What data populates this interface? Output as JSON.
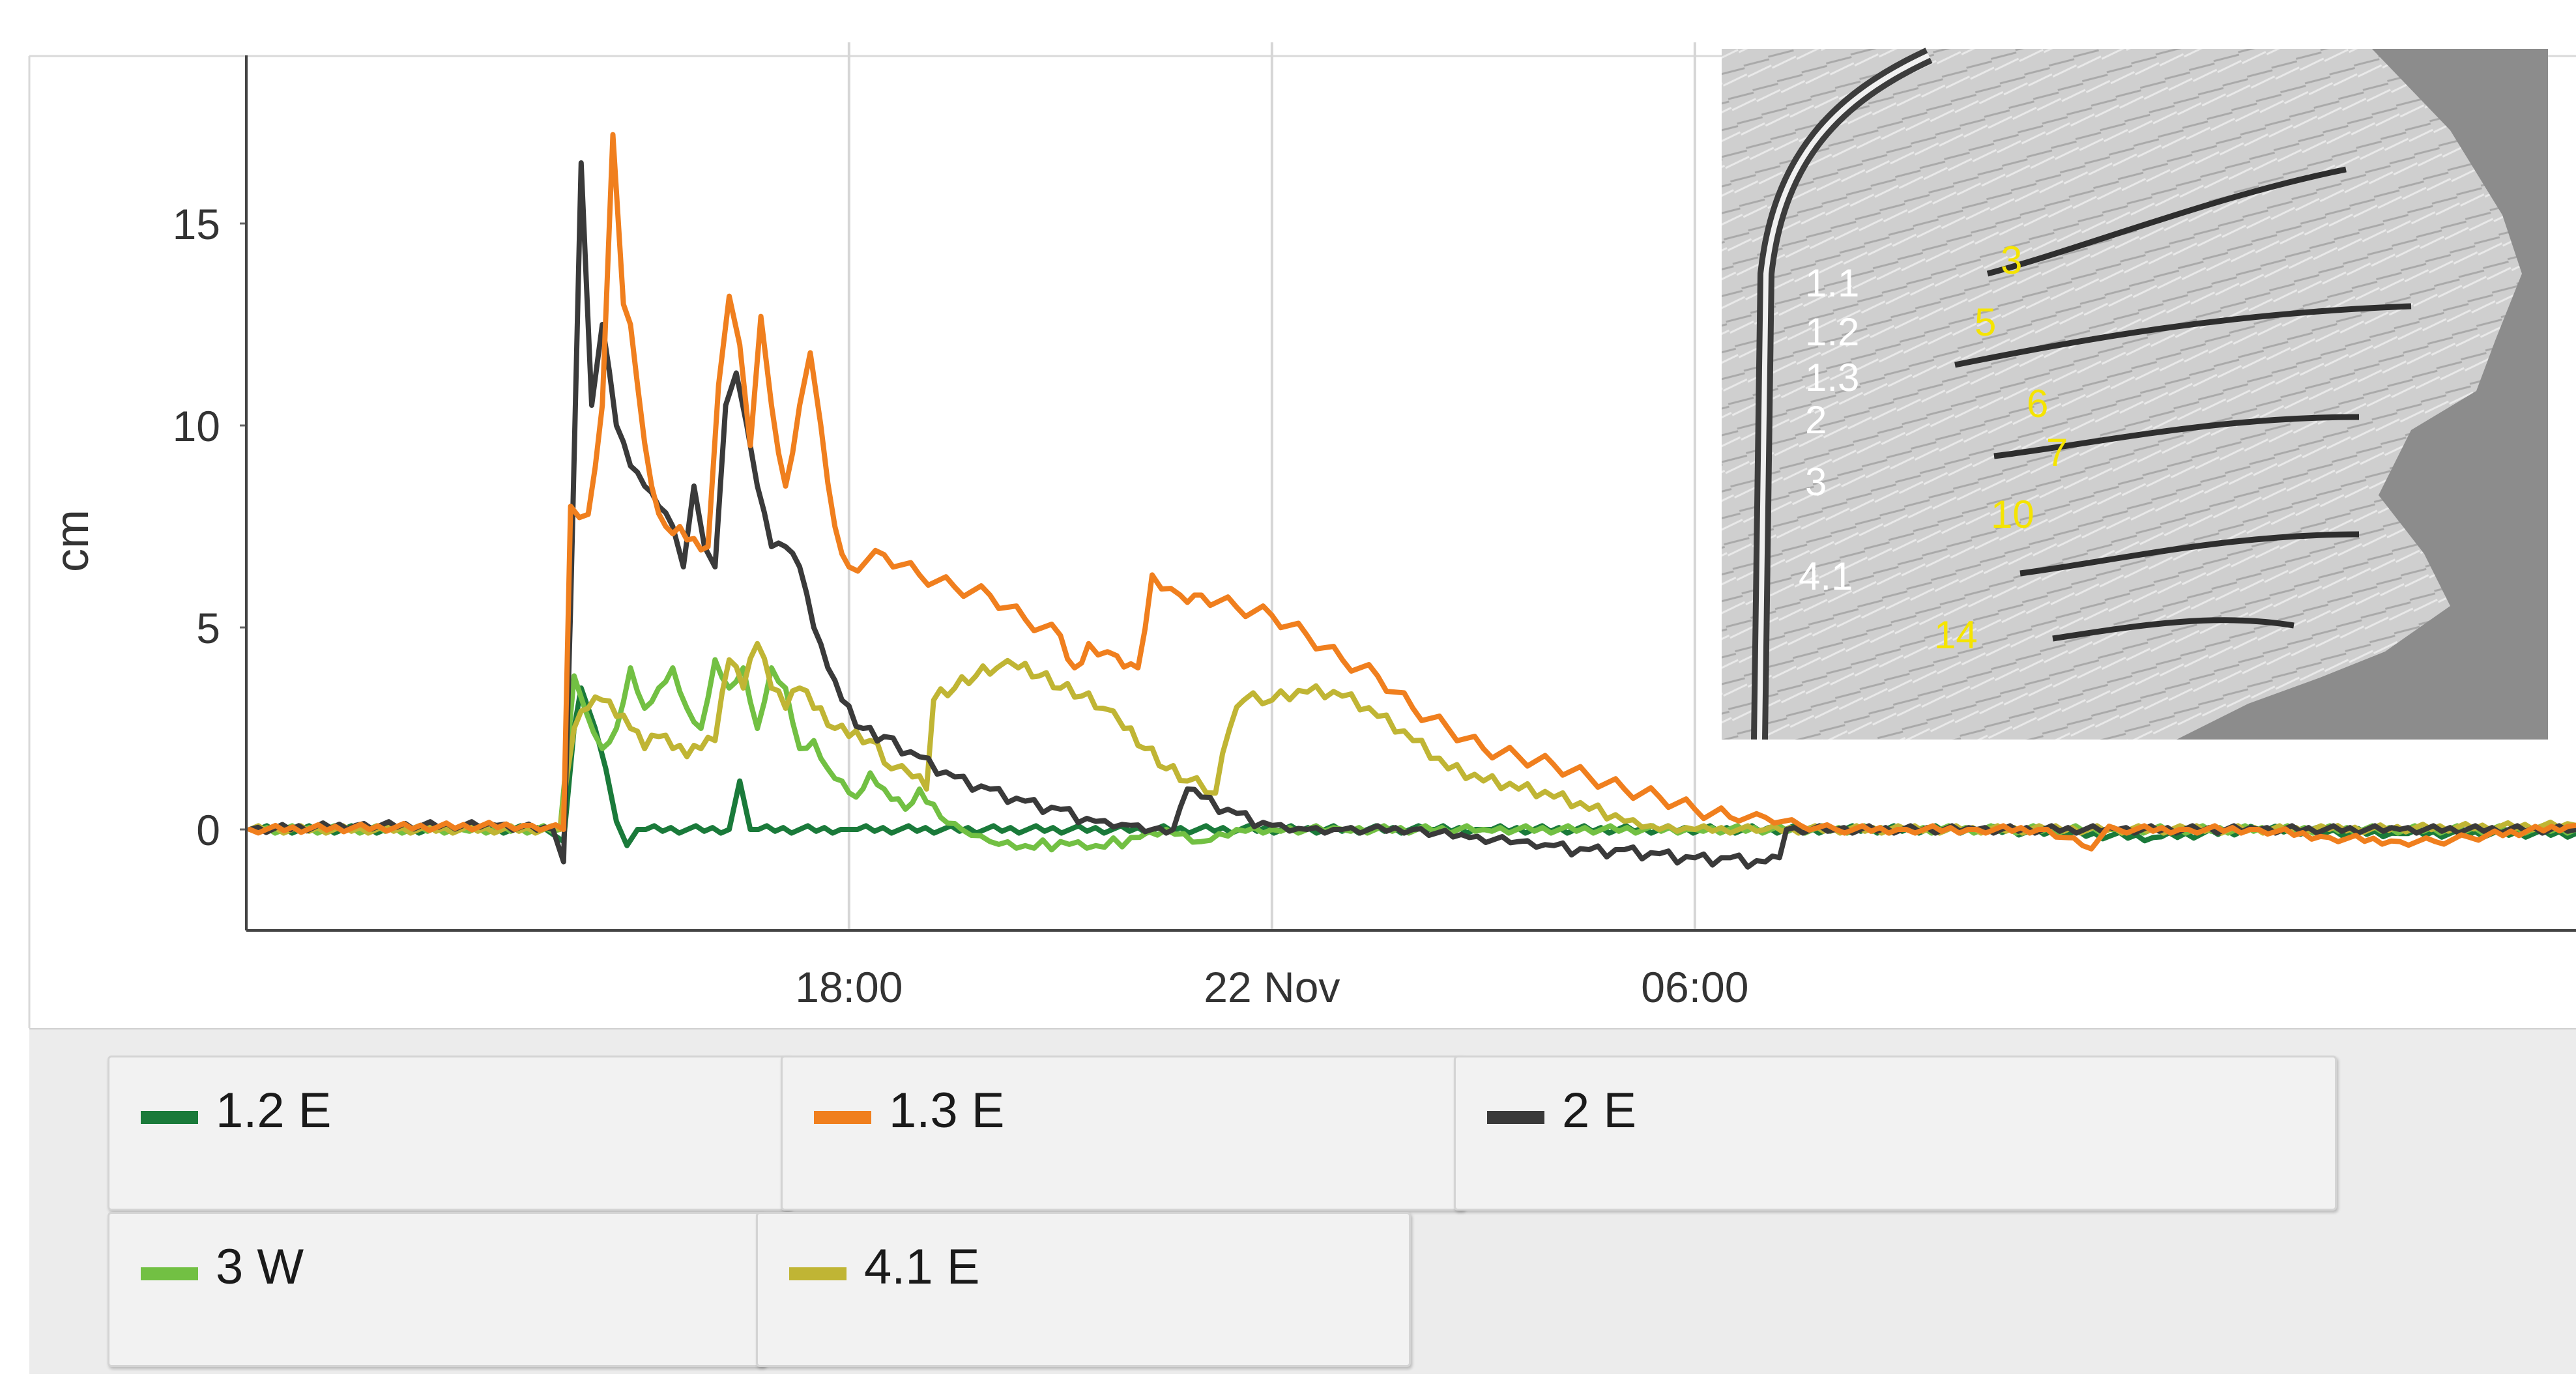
{
  "chart_data": {
    "type": "line",
    "ylabel": "cm",
    "xlabel": "",
    "x_ticks": [
      "18:00",
      "22 Nov",
      "06:00"
    ],
    "y_ticks": [
      0,
      5,
      10,
      15
    ],
    "ylim": [
      -2.5,
      19
    ],
    "x_unit": "hours since 21 Nov 00:00",
    "xlim": [
      9.45,
      42.5
    ],
    "x_tick_values": [
      18,
      24,
      30
    ],
    "grid": true,
    "legend_position": "bottom",
    "series": [
      {
        "name": "1.2 E",
        "color": "#1a7a3a",
        "points": [
          [
            9.5,
            0
          ],
          [
            12.5,
            0
          ],
          [
            13.7,
            0
          ],
          [
            13.95,
            -0.3
          ],
          [
            14.1,
            2.5
          ],
          [
            14.2,
            3.5
          ],
          [
            14.4,
            2.5
          ],
          [
            14.55,
            1.5
          ],
          [
            14.7,
            0.2
          ],
          [
            14.85,
            -0.4
          ],
          [
            15.0,
            0
          ],
          [
            16.3,
            0
          ],
          [
            16.45,
            1.2
          ],
          [
            16.6,
            0
          ],
          [
            18.0,
            0
          ],
          [
            26.2,
            0
          ],
          [
            27.0,
            0
          ],
          [
            32.0,
            0
          ],
          [
            34.0,
            0
          ],
          [
            36.5,
            -0.2
          ],
          [
            38.0,
            0
          ],
          [
            40.0,
            -0.1
          ],
          [
            42.5,
            -0.1
          ]
        ]
      },
      {
        "name": "1.3 E",
        "color": "#f07f1e",
        "points": [
          [
            9.5,
            0
          ],
          [
            13.5,
            0.1
          ],
          [
            13.95,
            0
          ],
          [
            14.05,
            8.0
          ],
          [
            14.3,
            7.8
          ],
          [
            14.5,
            10.5
          ],
          [
            14.65,
            17.2
          ],
          [
            14.8,
            13.0
          ],
          [
            14.9,
            12.5
          ],
          [
            15.0,
            11.0
          ],
          [
            15.2,
            8.5
          ],
          [
            15.4,
            7.5
          ],
          [
            15.6,
            7.5
          ],
          [
            15.8,
            7.2
          ],
          [
            16.0,
            7.0
          ],
          [
            16.15,
            11.0
          ],
          [
            16.3,
            13.2
          ],
          [
            16.45,
            12.0
          ],
          [
            16.6,
            9.5
          ],
          [
            16.75,
            12.7
          ],
          [
            16.9,
            10.5
          ],
          [
            17.1,
            8.5
          ],
          [
            17.3,
            10.5
          ],
          [
            17.45,
            11.8
          ],
          [
            17.6,
            10.0
          ],
          [
            17.8,
            7.5
          ],
          [
            18.0,
            6.5
          ],
          [
            18.5,
            6.8
          ],
          [
            19.0,
            6.3
          ],
          [
            19.5,
            6.0
          ],
          [
            20.0,
            5.8
          ],
          [
            20.5,
            5.2
          ],
          [
            21.0,
            4.8
          ],
          [
            21.2,
            4.0
          ],
          [
            21.4,
            4.6
          ],
          [
            21.8,
            4.3
          ],
          [
            22.1,
            4.0
          ],
          [
            22.3,
            6.3
          ],
          [
            22.7,
            5.8
          ],
          [
            23.0,
            5.8
          ],
          [
            23.5,
            5.5
          ],
          [
            24.0,
            5.3
          ],
          [
            24.5,
            4.8
          ],
          [
            25.0,
            4.2
          ],
          [
            25.5,
            3.8
          ],
          [
            26.0,
            3.0
          ],
          [
            26.5,
            2.5
          ],
          [
            27.0,
            2.0
          ],
          [
            27.5,
            1.8
          ],
          [
            28.0,
            1.6
          ],
          [
            28.5,
            1.3
          ],
          [
            29.0,
            1.0
          ],
          [
            29.5,
            0.8
          ],
          [
            30.0,
            0.5
          ],
          [
            30.5,
            0.3
          ],
          [
            31.0,
            0.3
          ],
          [
            31.5,
            0.1
          ],
          [
            32.0,
            0
          ],
          [
            33.0,
            0
          ],
          [
            34.0,
            0
          ],
          [
            35.0,
            0
          ],
          [
            35.5,
            -0.4
          ],
          [
            36.0,
            0
          ],
          [
            37.0,
            0
          ],
          [
            38.0,
            0
          ],
          [
            39.0,
            -0.2
          ],
          [
            40.0,
            -0.3
          ],
          [
            40.5,
            -0.3
          ],
          [
            41.0,
            -0.2
          ],
          [
            42.5,
            0.1
          ]
        ]
      },
      {
        "name": "2 E",
        "color": "#3a3a3a",
        "points": [
          [
            9.5,
            0
          ],
          [
            11.0,
            0.1
          ],
          [
            13.0,
            0.1
          ],
          [
            13.8,
            0
          ],
          [
            13.95,
            -0.8
          ],
          [
            14.05,
            5.5
          ],
          [
            14.2,
            16.5
          ],
          [
            14.35,
            10.5
          ],
          [
            14.5,
            12.5
          ],
          [
            14.7,
            10.0
          ],
          [
            14.9,
            9.0
          ],
          [
            15.1,
            8.5
          ],
          [
            15.3,
            8.0
          ],
          [
            15.5,
            7.5
          ],
          [
            15.65,
            6.5
          ],
          [
            15.8,
            8.5
          ],
          [
            15.95,
            7.0
          ],
          [
            16.1,
            6.5
          ],
          [
            16.25,
            10.5
          ],
          [
            16.4,
            11.3
          ],
          [
            16.55,
            10.0
          ],
          [
            16.7,
            8.5
          ],
          [
            16.9,
            7.0
          ],
          [
            17.1,
            7.0
          ],
          [
            17.3,
            6.5
          ],
          [
            17.5,
            5.0
          ],
          [
            17.7,
            4.0
          ],
          [
            17.9,
            3.2
          ],
          [
            18.2,
            2.5
          ],
          [
            18.5,
            2.3
          ],
          [
            19.0,
            1.8
          ],
          [
            19.5,
            1.3
          ],
          [
            20.0,
            1.0
          ],
          [
            20.5,
            0.7
          ],
          [
            21.0,
            0.5
          ],
          [
            21.5,
            0.2
          ],
          [
            22.0,
            0.1
          ],
          [
            22.3,
            0
          ],
          [
            22.6,
            0
          ],
          [
            22.8,
            1.0
          ],
          [
            23.0,
            0.8
          ],
          [
            23.5,
            0.4
          ],
          [
            24.0,
            0.1
          ],
          [
            24.5,
            0
          ],
          [
            25.0,
            0
          ],
          [
            26.0,
            0
          ],
          [
            26.8,
            -0.2
          ],
          [
            27.5,
            -0.3
          ],
          [
            28.0,
            -0.4
          ],
          [
            28.5,
            -0.5
          ],
          [
            29.0,
            -0.5
          ],
          [
            29.5,
            -0.6
          ],
          [
            30.0,
            -0.7
          ],
          [
            30.5,
            -0.7
          ],
          [
            31.0,
            -0.8
          ],
          [
            31.2,
            -0.7
          ],
          [
            31.3,
            0
          ],
          [
            32.0,
            0
          ],
          [
            34.0,
            0
          ],
          [
            36.0,
            0
          ],
          [
            38.0,
            0
          ],
          [
            40.0,
            0
          ],
          [
            42.5,
            0
          ]
        ]
      },
      {
        "name": "3 W",
        "color": "#72c043",
        "points": [
          [
            9.5,
            0
          ],
          [
            12.5,
            0
          ],
          [
            13.9,
            0
          ],
          [
            14.1,
            3.8
          ],
          [
            14.25,
            3.0
          ],
          [
            14.5,
            2.0
          ],
          [
            14.7,
            2.5
          ],
          [
            14.9,
            4.0
          ],
          [
            15.1,
            3.0
          ],
          [
            15.3,
            3.5
          ],
          [
            15.5,
            4.0
          ],
          [
            15.7,
            3.0
          ],
          [
            15.9,
            2.5
          ],
          [
            16.1,
            4.2
          ],
          [
            16.3,
            3.5
          ],
          [
            16.5,
            4.0
          ],
          [
            16.7,
            2.5
          ],
          [
            16.9,
            4.0
          ],
          [
            17.1,
            3.5
          ],
          [
            17.3,
            2.0
          ],
          [
            17.5,
            2.2
          ],
          [
            17.7,
            1.5
          ],
          [
            17.9,
            1.2
          ],
          [
            18.1,
            0.8
          ],
          [
            18.3,
            1.4
          ],
          [
            18.5,
            1.0
          ],
          [
            18.8,
            0.5
          ],
          [
            19.0,
            1.0
          ],
          [
            19.3,
            0.3
          ],
          [
            19.6,
            0
          ],
          [
            20.0,
            -0.3
          ],
          [
            20.5,
            -0.4
          ],
          [
            21.0,
            -0.3
          ],
          [
            21.5,
            -0.4
          ],
          [
            22.0,
            -0.2
          ],
          [
            22.5,
            0
          ],
          [
            23.0,
            -0.3
          ],
          [
            23.5,
            0
          ],
          [
            24.0,
            0
          ],
          [
            25.0,
            0
          ],
          [
            27.0,
            0
          ],
          [
            30.0,
            0
          ],
          [
            33.0,
            0
          ],
          [
            36.0,
            0
          ],
          [
            42.5,
            0
          ]
        ]
      },
      {
        "name": "4.1 E",
        "color": "#c0b534",
        "points": [
          [
            9.5,
            0
          ],
          [
            12.5,
            0
          ],
          [
            13.9,
            0
          ],
          [
            14.1,
            2.5
          ],
          [
            14.3,
            3.0
          ],
          [
            14.5,
            3.2
          ],
          [
            14.7,
            2.8
          ],
          [
            14.9,
            2.5
          ],
          [
            15.1,
            2.0
          ],
          [
            15.3,
            2.3
          ],
          [
            15.5,
            2.0
          ],
          [
            15.7,
            1.8
          ],
          [
            15.9,
            2.0
          ],
          [
            16.1,
            2.2
          ],
          [
            16.3,
            4.2
          ],
          [
            16.5,
            3.5
          ],
          [
            16.7,
            4.6
          ],
          [
            16.9,
            3.5
          ],
          [
            17.1,
            3.0
          ],
          [
            17.3,
            3.5
          ],
          [
            17.5,
            3.0
          ],
          [
            17.8,
            2.5
          ],
          [
            18.0,
            2.3
          ],
          [
            18.3,
            2.2
          ],
          [
            18.6,
            1.5
          ],
          [
            18.9,
            1.3
          ],
          [
            19.1,
            1.0
          ],
          [
            19.2,
            3.2
          ],
          [
            19.5,
            3.5
          ],
          [
            19.8,
            3.8
          ],
          [
            20.1,
            4.0
          ],
          [
            20.4,
            4.0
          ],
          [
            20.7,
            3.8
          ],
          [
            21.0,
            3.5
          ],
          [
            21.3,
            3.3
          ],
          [
            21.6,
            3.0
          ],
          [
            21.9,
            2.5
          ],
          [
            22.2,
            2.0
          ],
          [
            22.5,
            1.5
          ],
          [
            22.8,
            1.2
          ],
          [
            23.2,
            0.9
          ],
          [
            23.4,
            2.5
          ],
          [
            23.6,
            3.2
          ],
          [
            24.0,
            3.2
          ],
          [
            24.5,
            3.4
          ],
          [
            25.0,
            3.3
          ],
          [
            25.5,
            2.8
          ],
          [
            26.0,
            2.2
          ],
          [
            26.5,
            1.5
          ],
          [
            27.0,
            1.2
          ],
          [
            27.5,
            1.0
          ],
          [
            28.0,
            0.8
          ],
          [
            28.5,
            0.5
          ],
          [
            29.0,
            0.2
          ],
          [
            29.5,
            0
          ],
          [
            30.0,
            0
          ],
          [
            31.0,
            0
          ],
          [
            33.0,
            0
          ],
          [
            35.0,
            0
          ],
          [
            37.0,
            0
          ],
          [
            39.0,
            0
          ],
          [
            42.5,
            0.1
          ]
        ]
      }
    ]
  },
  "inset_map": {
    "white_labels": [
      "1.1",
      "1.2",
      "1.3",
      "2",
      "3",
      "4.1"
    ],
    "yellow_labels": [
      "3",
      "5",
      "6",
      "7",
      "10",
      "14"
    ],
    "white_label_color": "#ffffff",
    "yellow_label_color": "#f5e400"
  },
  "legend": {
    "items": [
      {
        "label": "1.2 E",
        "color": "#1a7a3a"
      },
      {
        "label": "1.3 E",
        "color": "#f07f1e"
      },
      {
        "label": "2 E",
        "color": "#3a3a3a"
      },
      {
        "label": "3 W",
        "color": "#72c043"
      },
      {
        "label": "4.1 E",
        "color": "#c0b534"
      }
    ]
  }
}
